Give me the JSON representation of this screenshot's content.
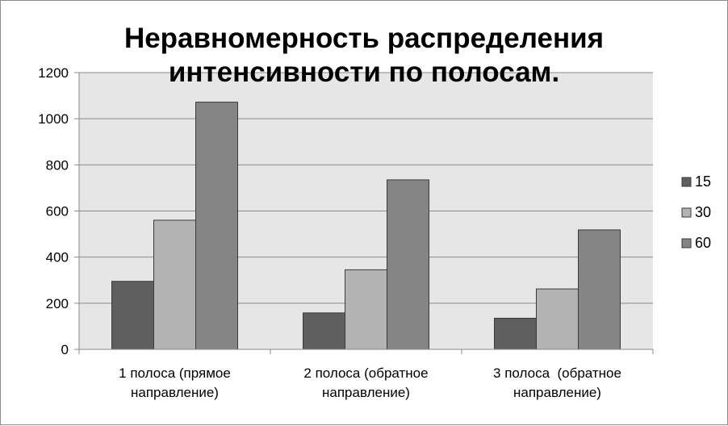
{
  "chart_data": {
    "type": "bar",
    "title": [
      "Неравномерность распределения",
      "интенсивности по полосам."
    ],
    "categories": [
      [
        "1 полоса (прямое",
        "направление)"
      ],
      [
        "2 полоса (обратное",
        "направление)"
      ],
      [
        "3 полоса  (обратное",
        "направление)"
      ]
    ],
    "series": [
      {
        "name": "15",
        "values": [
          295,
          158,
          135
        ],
        "color": "#5f5f5f"
      },
      {
        "name": "30",
        "values": [
          560,
          345,
          262
        ],
        "color": "#b3b3b3"
      },
      {
        "name": "60",
        "values": [
          1072,
          735,
          518
        ],
        "color": "#858585"
      }
    ],
    "yticks": [
      "0",
      "200",
      "400",
      "600",
      "800",
      "1000",
      "1200"
    ],
    "ylim": [
      0,
      1200
    ],
    "xlabel": "",
    "ylabel": "",
    "grid": true,
    "plot_background": "#e6e6e6",
    "legend_position": "right"
  }
}
